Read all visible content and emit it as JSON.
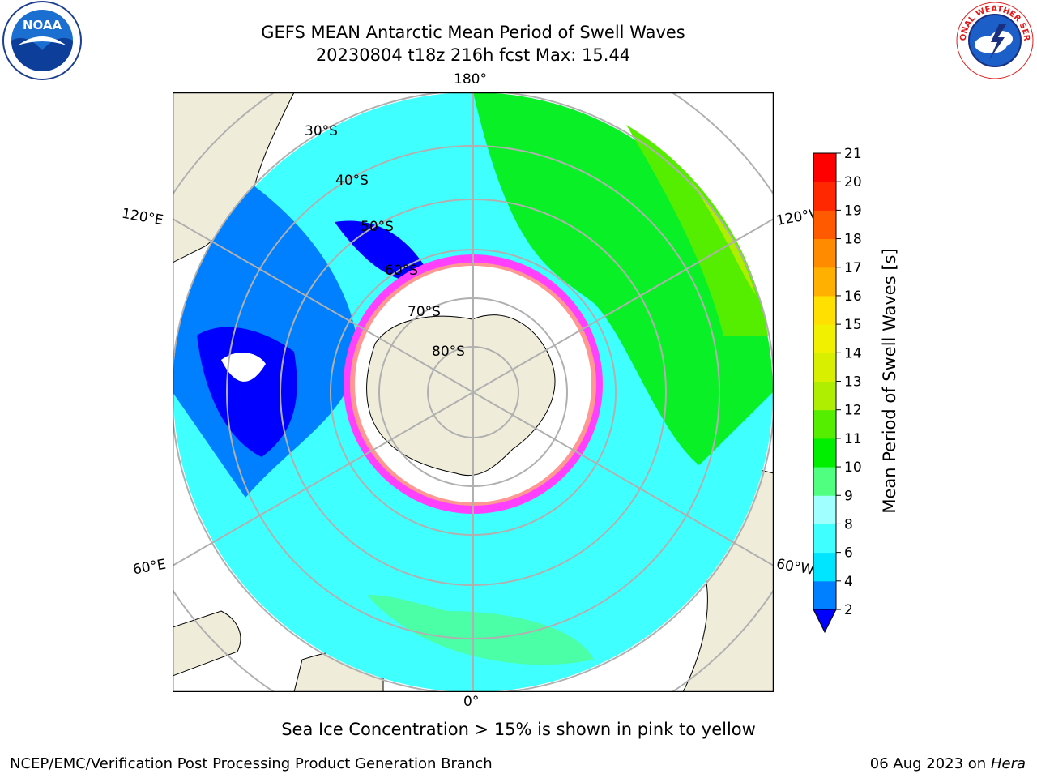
{
  "header": {
    "title_line1": "GEFS MEAN Antarctic Mean Period of Swell Waves",
    "title_line2": "20230804 t18z 216h fcst   Max: 15.44"
  },
  "logos": {
    "left": "noaa-logo",
    "right": "nws-logo",
    "left_text": "NOAA",
    "right_text": "NATIONAL WEATHER SERVICE"
  },
  "map": {
    "projection": "south-polar-stereographic",
    "longitude_labels": {
      "top": "180°",
      "bottom": "0°",
      "upper_left": "120°E",
      "upper_right": "120°W",
      "lower_left": "60°E",
      "lower_right": "60°W"
    },
    "latitude_labels": [
      "30°S",
      "40°S",
      "50°S",
      "60°S",
      "70°S",
      "80°S"
    ],
    "colors": {
      "land": "#efedda",
      "ocean_ice_free": "#ffffff",
      "grid": "#b0b0b0",
      "sea_ice_pink": "#ff40ff",
      "sea_ice_yellow": "#ffd24a"
    }
  },
  "colorbar": {
    "label": "Mean Period of Swell Waves [s]",
    "ticks": [
      "2",
      "4",
      "6",
      "8",
      "9",
      "10",
      "11",
      "12",
      "13",
      "14",
      "15",
      "16",
      "17",
      "18",
      "19",
      "20",
      "21"
    ],
    "colors": [
      "#0000ff",
      "#0080ff",
      "#00e5ff",
      "#40ffff",
      "#a0ffff",
      "#50ff80",
      "#00ee00",
      "#55ee00",
      "#b0ee00",
      "#d8f000",
      "#f0f000",
      "#ffe000",
      "#ffb000",
      "#ff8c00",
      "#ff5a00",
      "#ff2800",
      "#ff0000"
    ],
    "extend_min_color": "#0000ff"
  },
  "caption": "Sea Ice Concentration > 15% is shown in pink to yellow",
  "footer": {
    "credit": "NCEP/EMC/Verification Post Processing Product Generation Branch",
    "date": "06 Aug 2023 on",
    "machine": "Hera"
  }
}
